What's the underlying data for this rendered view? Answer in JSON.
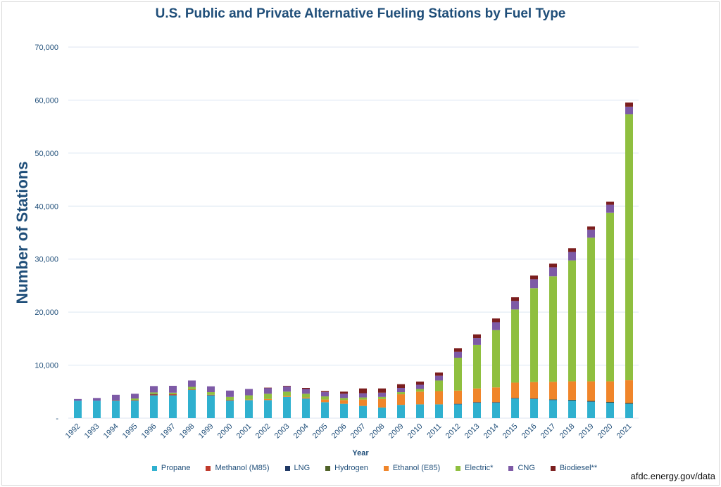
{
  "chart_data": {
    "type": "bar",
    "stacked": true,
    "title": "U.S. Public and Private Alternative Fueling Stations by Fuel Type",
    "xlabel": "Year",
    "ylabel": "Number of Stations",
    "ylim": [
      0,
      70000
    ],
    "yticks": [
      0,
      10000,
      20000,
      30000,
      40000,
      50000,
      60000,
      70000
    ],
    "ytick_labels": [
      "-",
      "10,000",
      "20,000",
      "30,000",
      "40,000",
      "50,000",
      "60,000",
      "70,000"
    ],
    "grid": true,
    "legend_position": "bottom",
    "categories": [
      "1992",
      "1993",
      "1994",
      "1995",
      "1996",
      "1997",
      "1998",
      "1999",
      "2000",
      "2001",
      "2002",
      "2003",
      "2004",
      "2005",
      "2006",
      "2007",
      "2008",
      "2009",
      "2010",
      "2011",
      "2012",
      "2013",
      "2014",
      "2015",
      "2016",
      "2017",
      "2018",
      "2019",
      "2020",
      "2021"
    ],
    "series": [
      {
        "name": "Propane",
        "color": "#2fb0cf",
        "values": [
          3300,
          3300,
          3300,
          3300,
          4300,
          4300,
          5300,
          4300,
          3300,
          3400,
          3400,
          4000,
          3700,
          3000,
          2700,
          2300,
          2000,
          2500,
          2600,
          2600,
          2600,
          2900,
          2900,
          3700,
          3600,
          3400,
          3300,
          3100,
          2900,
          2700
        ]
      },
      {
        "name": "Methanol (M85)",
        "color": "#c0392b",
        "values": [
          0,
          0,
          100,
          100,
          200,
          200,
          100,
          100,
          100,
          0,
          0,
          0,
          0,
          0,
          0,
          0,
          0,
          0,
          0,
          0,
          0,
          0,
          0,
          0,
          0,
          0,
          0,
          0,
          0,
          0
        ]
      },
      {
        "name": "LNG",
        "color": "#1f3864",
        "values": [
          0,
          0,
          0,
          0,
          50,
          0,
          0,
          0,
          0,
          0,
          0,
          0,
          0,
          0,
          0,
          0,
          0,
          0,
          0,
          0,
          100,
          100,
          100,
          100,
          100,
          100,
          100,
          100,
          100,
          100
        ]
      },
      {
        "name": "Hydrogen",
        "color": "#4f6228",
        "values": [
          0,
          0,
          0,
          0,
          0,
          0,
          0,
          0,
          0,
          0,
          0,
          0,
          0,
          0,
          0,
          0,
          0,
          0,
          0,
          0,
          0,
          0,
          0,
          0,
          0,
          50,
          50,
          50,
          50,
          50
        ]
      },
      {
        "name": "Ethanol (E85)",
        "color": "#f0852a",
        "values": [
          0,
          0,
          0,
          0,
          0,
          0,
          0,
          0,
          0,
          100,
          200,
          200,
          200,
          500,
          700,
          1200,
          1600,
          2000,
          2400,
          2500,
          2500,
          2600,
          2800,
          2900,
          3100,
          3300,
          3500,
          3700,
          3900,
          4300
        ]
      },
      {
        "name": "Electric*",
        "color": "#8fbf3f",
        "values": [
          0,
          0,
          0,
          300,
          300,
          300,
          500,
          500,
          600,
          800,
          1000,
          800,
          700,
          600,
          400,
          400,
          400,
          400,
          500,
          2000,
          6200,
          8200,
          10800,
          13800,
          17700,
          19900,
          22800,
          27100,
          31800,
          50200
        ]
      },
      {
        "name": "CNG",
        "color": "#7d5aa6",
        "values": [
          300,
          500,
          1000,
          900,
          1200,
          1300,
          1200,
          1100,
          1200,
          1200,
          1100,
          1000,
          900,
          800,
          800,
          800,
          800,
          800,
          800,
          900,
          1100,
          1300,
          1500,
          1600,
          1700,
          1700,
          1600,
          1500,
          1500,
          1400
        ]
      },
      {
        "name": "Biodiesel**",
        "color": "#7b1e1e",
        "values": [
          0,
          0,
          0,
          0,
          0,
          0,
          0,
          0,
          0,
          0,
          50,
          100,
          200,
          200,
          400,
          900,
          800,
          700,
          600,
          600,
          700,
          700,
          700,
          700,
          700,
          700,
          700,
          600,
          600,
          800
        ]
      }
    ]
  },
  "source": "afdc.energy.gov/data"
}
